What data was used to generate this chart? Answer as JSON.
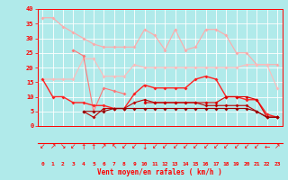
{
  "bg_color": "#b0eaea",
  "grid_color": "#cceeee",
  "xlabel": "Vent moyen/en rafales ( km/h )",
  "ylabel_ticks": [
    0,
    5,
    10,
    15,
    20,
    25,
    30,
    35,
    40
  ],
  "ylim": [
    0,
    40
  ],
  "n_points": 24,
  "series": [
    {
      "y": [
        37,
        37,
        34,
        32,
        30,
        28,
        27,
        27,
        27,
        27,
        33,
        31,
        26,
        33,
        26,
        27,
        33,
        33,
        31,
        25,
        25,
        21,
        21,
        21
      ],
      "color": "#ffaaaa",
      "lw": 0.8
    },
    {
      "y": [
        16,
        16,
        16,
        16,
        23,
        23,
        17,
        17,
        17,
        21,
        20,
        20,
        20,
        20,
        20,
        20,
        20,
        20,
        20,
        20,
        21,
        21,
        21,
        13
      ],
      "color": "#ffbbbb",
      "lw": 0.8
    },
    {
      "y": [
        null,
        null,
        null,
        26,
        24,
        5,
        13,
        12,
        11,
        null,
        null,
        null,
        null,
        null,
        null,
        null,
        null,
        null,
        null,
        null,
        null,
        null,
        null,
        null
      ],
      "color": "#ff7777",
      "lw": 0.8
    },
    {
      "y": [
        16,
        10,
        10,
        8,
        8,
        7,
        7,
        6,
        6,
        11,
        14,
        13,
        13,
        13,
        13,
        16,
        17,
        16,
        10,
        10,
        9,
        9,
        4,
        3
      ],
      "color": "#ff2222",
      "lw": 1.0
    },
    {
      "y": [
        null,
        null,
        null,
        null,
        null,
        null,
        null,
        null,
        null,
        null,
        8,
        8,
        8,
        8,
        8,
        8,
        8,
        8,
        10,
        10,
        10,
        9,
        3,
        3
      ],
      "color": "#dd0000",
      "lw": 0.8
    },
    {
      "y": [
        null,
        null,
        null,
        null,
        5,
        3,
        6,
        6,
        6,
        8,
        9,
        8,
        8,
        8,
        8,
        8,
        7,
        7,
        7,
        7,
        7,
        5,
        3,
        3
      ],
      "color": "#bb0000",
      "lw": 0.8
    },
    {
      "y": [
        null,
        null,
        null,
        null,
        5,
        5,
        5,
        6,
        6,
        6,
        6,
        6,
        6,
        6,
        6,
        6,
        6,
        6,
        6,
        6,
        6,
        5,
        3,
        3
      ],
      "color": "#990000",
      "lw": 0.8
    }
  ],
  "wind_arrows": [
    "↙",
    "↗",
    "↘",
    "↙",
    "↑",
    "↑",
    "↗",
    "↖",
    "↙",
    "↙",
    "↓",
    "↙",
    "↙",
    "↙",
    "↙",
    "↙",
    "↙",
    "↙",
    "↙",
    "↙",
    "↙",
    "↙",
    "←",
    "↗"
  ]
}
